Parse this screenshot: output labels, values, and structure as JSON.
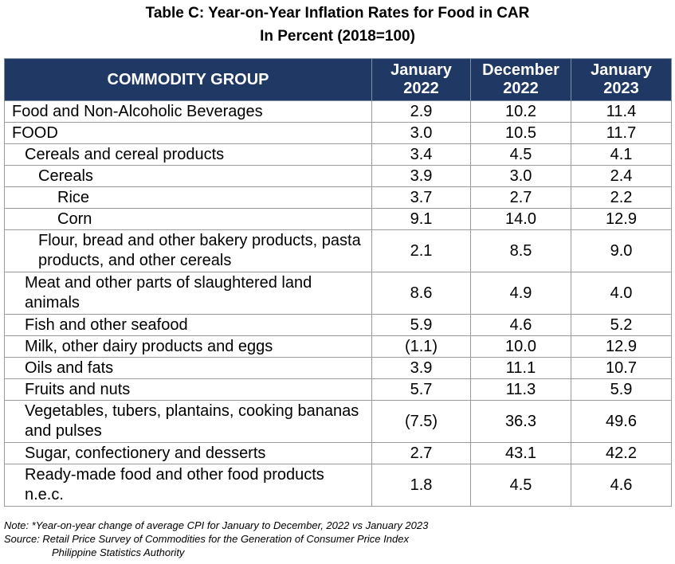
{
  "title_line1": "Table C: Year-on-Year Inflation Rates for Food in CAR",
  "title_line2": "In Percent (2018=100)",
  "headers": [
    "COMMODITY GROUP",
    "January 2022",
    "December 2022",
    "January 2023"
  ],
  "rows": [
    {
      "name": "Food and Non-Alcoholic Beverages",
      "level": 0,
      "values": [
        "2.9",
        "10.2",
        "11.4"
      ]
    },
    {
      "name": "FOOD",
      "level": 0,
      "values": [
        "3.0",
        "10.5",
        "11.7"
      ]
    },
    {
      "name": "Cereals and cereal products",
      "level": 1,
      "values": [
        "3.4",
        "4.5",
        "4.1"
      ]
    },
    {
      "name": "Cereals",
      "level": 2,
      "values": [
        "3.9",
        "3.0",
        "2.4"
      ]
    },
    {
      "name": "Rice",
      "level": 3,
      "values": [
        "3.7",
        "2.7",
        "2.2"
      ]
    },
    {
      "name": "Corn",
      "level": 3,
      "values": [
        "9.1",
        "14.0",
        "12.9"
      ]
    },
    {
      "name": "Flour, bread and other bakery products, pasta products, and other cereals",
      "level": 2,
      "values": [
        "2.1",
        "8.5",
        "9.0"
      ]
    },
    {
      "name": "Meat and other parts of slaughtered land animals",
      "level": 1,
      "values": [
        "8.6",
        "4.9",
        "4.0"
      ]
    },
    {
      "name": "Fish and other seafood",
      "level": 1,
      "values": [
        "5.9",
        "4.6",
        "5.2"
      ]
    },
    {
      "name": "Milk, other dairy products and eggs",
      "level": 1,
      "values": [
        "(1.1)",
        "10.0",
        "12.9"
      ]
    },
    {
      "name": "Oils and fats",
      "level": 1,
      "values": [
        "3.9",
        "11.1",
        "10.7"
      ]
    },
    {
      "name": "Fruits and nuts",
      "level": 1,
      "values": [
        "5.7",
        "11.3",
        "5.9"
      ]
    },
    {
      "name": "Vegetables, tubers, plantains, cooking bananas and pulses",
      "level": 1,
      "values": [
        "(7.5)",
        "36.3",
        "49.6"
      ]
    },
    {
      "name": "Sugar, confectionery and desserts",
      "level": 1,
      "values": [
        "2.7",
        "43.1",
        "42.2"
      ]
    },
    {
      "name": "Ready-made food and other food products n.e.c.",
      "level": 1,
      "values": [
        "1.8",
        "4.5",
        "4.6"
      ]
    }
  ],
  "note_line": "Note: *Year-on-year change of average CPI for January to December, 2022 vs January 2023",
  "source_line": "Source: Retail Price Survey of Commodities for the Generation of Consumer Price Index",
  "source_org": "Philippine Statistics Authority"
}
